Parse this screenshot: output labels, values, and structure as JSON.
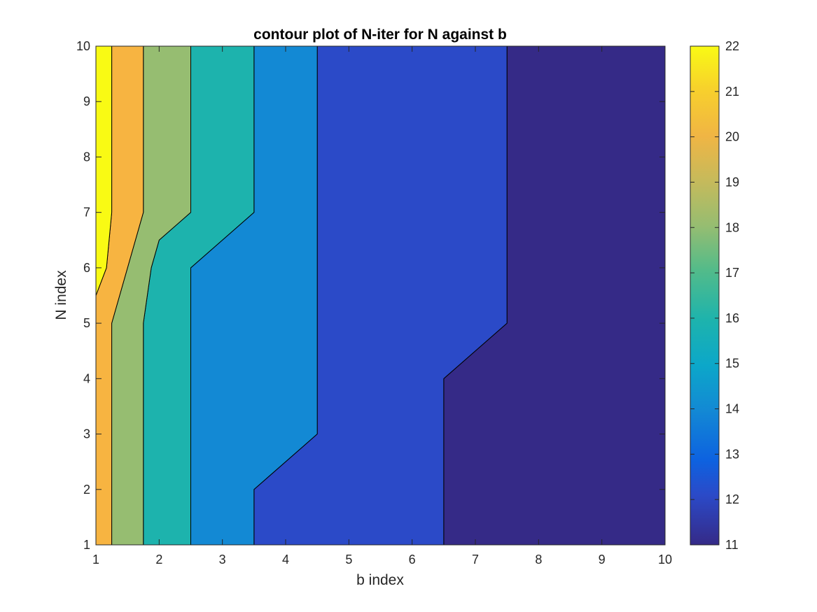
{
  "chart_data": {
    "type": "contour",
    "title": "contour plot of N-iter for N against b",
    "xlabel": "b index",
    "ylabel": "N index",
    "xlim": [
      1,
      10
    ],
    "ylim": [
      1,
      10
    ],
    "xticks": [
      1,
      2,
      3,
      4,
      5,
      6,
      7,
      8,
      9,
      10
    ],
    "yticks": [
      1,
      2,
      3,
      4,
      5,
      6,
      7,
      8,
      9,
      10
    ],
    "colorbar": {
      "range": [
        11,
        22
      ],
      "ticks": [
        11,
        12,
        13,
        14,
        15,
        16,
        17,
        18,
        19,
        20,
        21,
        22
      ],
      "colormap": "parula"
    },
    "regions": [
      {
        "level": 11,
        "color": "#352a87",
        "polygon": [
          [
            6.5,
            1
          ],
          [
            10,
            1
          ],
          [
            10,
            10
          ],
          [
            7.5,
            10
          ],
          [
            7.5,
            5
          ],
          [
            6.5,
            4
          ]
        ]
      },
      {
        "level": 12,
        "color": "#2b4ac8",
        "polygon": [
          [
            3.5,
            1
          ],
          [
            6.5,
            1
          ],
          [
            6.5,
            4
          ],
          [
            7.5,
            5
          ],
          [
            7.5,
            10
          ],
          [
            4.5,
            10
          ],
          [
            4.5,
            3
          ],
          [
            3.5,
            2
          ]
        ]
      },
      {
        "level": 14,
        "color": "#1389d4",
        "polygon": [
          [
            2.5,
            1
          ],
          [
            3.5,
            1
          ],
          [
            3.5,
            2
          ],
          [
            4.5,
            3
          ],
          [
            4.5,
            10
          ],
          [
            3.5,
            10
          ],
          [
            3.5,
            7
          ],
          [
            2.5,
            6
          ]
        ]
      },
      {
        "level": 16,
        "color": "#1db3ad",
        "polygon": [
          [
            1.75,
            1
          ],
          [
            2.5,
            1
          ],
          [
            2.5,
            6
          ],
          [
            3.5,
            7
          ],
          [
            3.5,
            10
          ],
          [
            2.5,
            10
          ],
          [
            2.5,
            7
          ],
          [
            2,
            6.5
          ],
          [
            1.875,
            6
          ],
          [
            1.75,
            5
          ]
        ]
      },
      {
        "level": 18,
        "color": "#96bd71",
        "polygon": [
          [
            1.25,
            1
          ],
          [
            1.75,
            1
          ],
          [
            1.75,
            5
          ],
          [
            1.875,
            6
          ],
          [
            2,
            6.5
          ],
          [
            2.5,
            7
          ],
          [
            2.5,
            10
          ],
          [
            1.75,
            10
          ],
          [
            1.75,
            7
          ],
          [
            1.25,
            5
          ]
        ]
      },
      {
        "level": 20,
        "color": "#f7b441",
        "polygon": [
          [
            1,
            1
          ],
          [
            1.25,
            1
          ],
          [
            1.25,
            5
          ],
          [
            1.75,
            7
          ],
          [
            1.75,
            10
          ],
          [
            1.25,
            10
          ],
          [
            1.25,
            7
          ],
          [
            1.167,
            6
          ],
          [
            1,
            5.5
          ]
        ]
      },
      {
        "level": 22,
        "color": "#f9fa14",
        "polygon": [
          [
            1,
            5.5
          ],
          [
            1.167,
            6
          ],
          [
            1.25,
            7
          ],
          [
            1.25,
            10
          ],
          [
            1,
            10
          ]
        ]
      }
    ]
  }
}
